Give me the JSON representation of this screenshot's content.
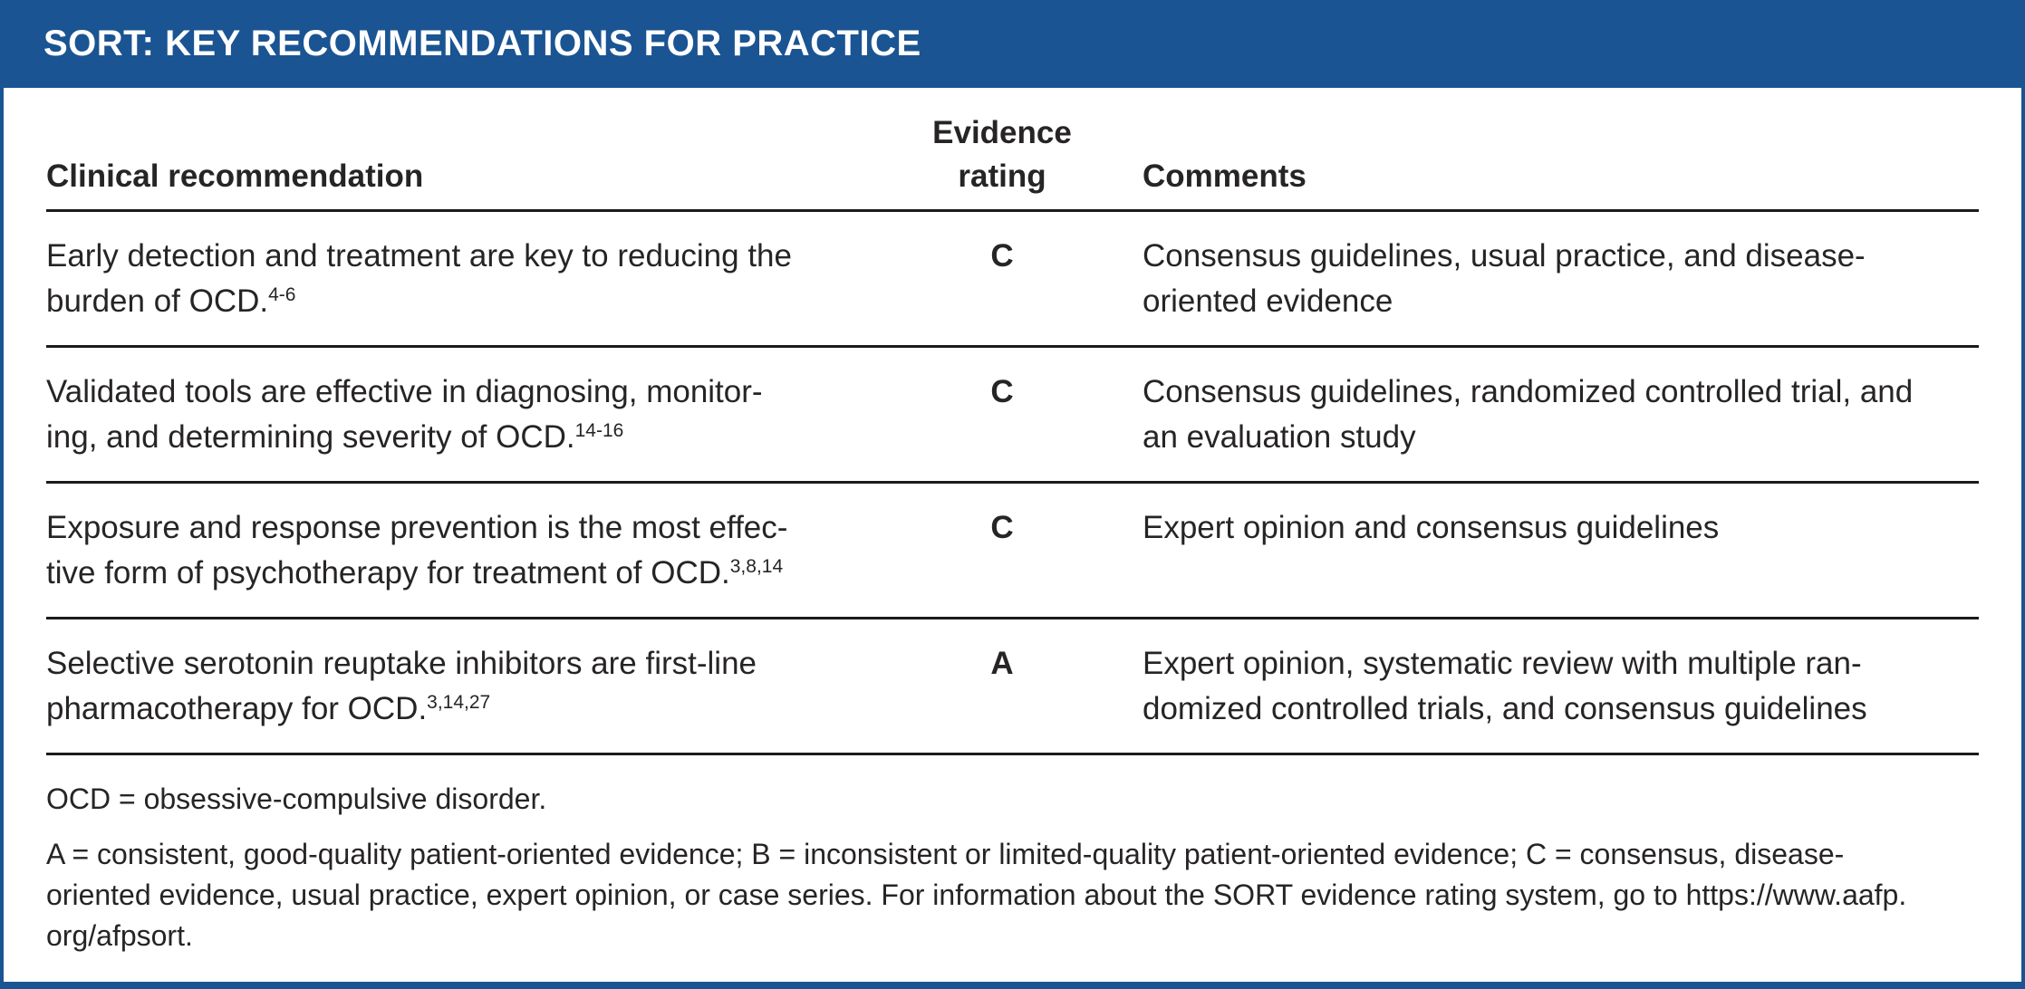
{
  "header": {
    "title": "SORT: KEY RECOMMENDATIONS FOR PRACTICE"
  },
  "table": {
    "columns": {
      "recommendation": "Clinical recommendation",
      "rating_line1": "Evidence",
      "rating_line2": "rating",
      "comments": "Comments"
    },
    "rows": [
      {
        "recommendation_lines": {
          "0": "Early detection and treatment are key to reducing the",
          "1": "burden of OCD."
        },
        "citation": "4-6",
        "rating": "C",
        "comment_lines": {
          "0": "Consensus guidelines, usual practice, and disease-",
          "1": "oriented evidence"
        }
      },
      {
        "recommendation_lines": {
          "0": "Validated tools are effective in diagnosing, monitor-",
          "1": "ing, and determining severity of OCD."
        },
        "citation": "14-16",
        "rating": "C",
        "comment_lines": {
          "0": "Consensus guidelines, randomized controlled trial, and",
          "1": "an evaluation study"
        }
      },
      {
        "recommendation_lines": {
          "0": "Exposure and response prevention is the most effec-",
          "1": "tive form of psychotherapy for treatment of OCD."
        },
        "citation": "3,8,14",
        "rating": "C",
        "comment_lines": {
          "0": "Expert opinion and consensus guidelines",
          "1": ""
        }
      },
      {
        "recommendation_lines": {
          "0": "Selective serotonin reuptake inhibitors are first-line",
          "1": "pharmacotherapy for OCD."
        },
        "citation": "3,14,27",
        "rating": "A",
        "comment_lines": {
          "0": "Expert opinion, systematic review with multiple ran-",
          "1": "domized controlled trials, and consensus guidelines"
        }
      }
    ]
  },
  "footer": {
    "abbreviation_note": "OCD = obsessive-compulsive disorder.",
    "rating_note_lines": {
      "0": "A = consistent, good-quality patient-oriented evidence; B = inconsistent or limited-quality patient-oriented evidence; C = consensus, disease-",
      "1": "oriented evidence, usual practice, expert opinion, or case series. For information about the SORT evidence rating system, go to https://www.aafp.",
      "2": "org/afpsort."
    }
  },
  "colors": {
    "brand_blue": "#1a5492",
    "text": "#272425",
    "rule": "#1b1b1b"
  }
}
